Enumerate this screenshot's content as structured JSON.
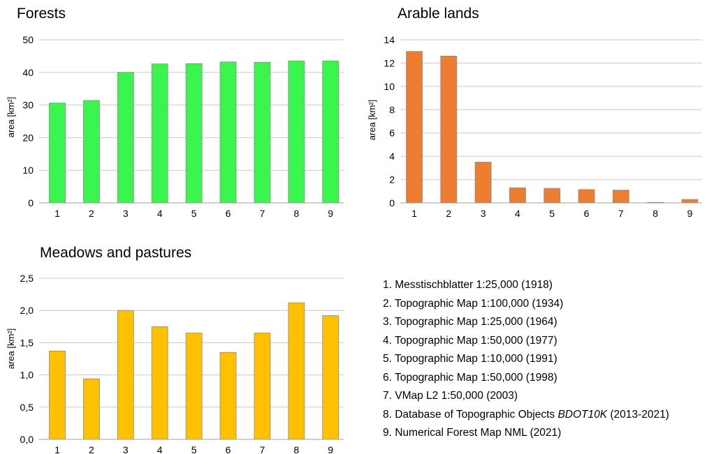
{
  "chart_data": [
    {
      "type": "bar",
      "title": "Forests",
      "ylabel": "area [km²]",
      "categories": [
        "1",
        "2",
        "3",
        "4",
        "5",
        "6",
        "7",
        "8",
        "9"
      ],
      "values": [
        30.6,
        31.4,
        40.0,
        42.6,
        42.7,
        43.2,
        43.1,
        43.5,
        43.5
      ],
      "ylim": [
        0,
        50
      ],
      "yticks": [
        0,
        10,
        20,
        30,
        40,
        50
      ],
      "ytick_labels": [
        "0",
        "10",
        "20",
        "30",
        "40",
        "50"
      ],
      "grid": true,
      "color": "#39f54e"
    },
    {
      "type": "bar",
      "title": "Arable lands",
      "ylabel": "area [km²]",
      "categories": [
        "1",
        "2",
        "3",
        "4",
        "5",
        "6",
        "7",
        "8",
        "9"
      ],
      "values": [
        13.0,
        12.6,
        3.5,
        1.3,
        1.25,
        1.15,
        1.1,
        0.05,
        0.3
      ],
      "ylim": [
        0,
        14
      ],
      "yticks": [
        0,
        2,
        4,
        6,
        8,
        10,
        12,
        14
      ],
      "ytick_labels": [
        "0",
        "2",
        "4",
        "6",
        "8",
        "10",
        "12",
        "14"
      ],
      "grid": true,
      "color": "#ed7d31"
    },
    {
      "type": "bar",
      "title": "Meadows and pastures",
      "ylabel": "area [km²]",
      "categories": [
        "1",
        "2",
        "3",
        "4",
        "5",
        "6",
        "7",
        "8",
        "9"
      ],
      "values": [
        1.37,
        0.94,
        2.0,
        1.75,
        1.65,
        1.35,
        1.65,
        2.12,
        1.92
      ],
      "ylim": [
        0,
        2.5
      ],
      "yticks": [
        0,
        0.5,
        1.0,
        1.5,
        2.0,
        2.5
      ],
      "ytick_labels": [
        "0,0",
        "0,5",
        "1,0",
        "1,5",
        "2,0",
        "2,5"
      ],
      "grid": true,
      "color": "#ffc000"
    }
  ],
  "legend": {
    "items": [
      {
        "text": "1. Messtischblatter 1:25,000 (1918)"
      },
      {
        "text": "2. Topographic Map 1:100,000 (1934)"
      },
      {
        "text": "3. Topographic Map 1:25,000 (1964)"
      },
      {
        "text": "4. Topographic Map 1:50,000 (1977)"
      },
      {
        "text": "5. Topographic Map 1:10,000 (1991)"
      },
      {
        "text": "6. Topographic Map 1:50,000 (1998)"
      },
      {
        "text": "7. VMap L2 1:50,000 (2003)"
      },
      {
        "pre": "8. Database of Topographic Objects ",
        "em": "BDOT10K",
        "post": " (2013-2021)"
      },
      {
        "text": "9. Numerical Forest Map NML (2021)"
      }
    ]
  }
}
